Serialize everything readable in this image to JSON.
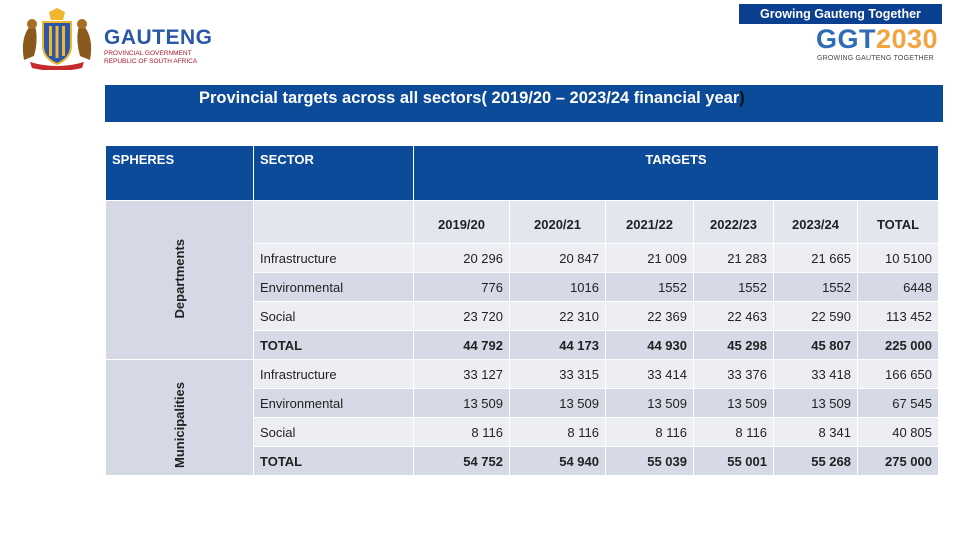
{
  "header": {
    "org_name": "GAUTENG",
    "org_sub_line1": "PROVINCIAL GOVERNMENT",
    "org_sub_line2": "REPUBLIC OF SOUTH AFRICA",
    "tagline": "Growing Gauteng Together",
    "ggt_logo_a": "GGT",
    "ggt_logo_b": "2030",
    "ggt_logo_sub": "GROWING GAUTENG TOGETHER"
  },
  "slide": {
    "title": "Provincial targets across all sectors( 2019/20 – 2023/24 financial year",
    "title_close": ")"
  },
  "table": {
    "col_spheres": "SPHERES",
    "col_sector": "SECTOR",
    "col_targets": "TARGETS",
    "years": [
      "2019/20",
      "2020/21",
      "2021/22",
      "2022/23",
      "2023/24",
      "TOTAL"
    ],
    "groups": [
      {
        "sphere": "Departments",
        "rows": [
          {
            "sector": "Infrastructure",
            "values": [
              "20 296",
              "20 847",
              "21 009",
              "21 283",
              "21 665",
              "10 5100"
            ]
          },
          {
            "sector": "Environmental",
            "values": [
              "776",
              "1016",
              "1552",
              "1552",
              "1552",
              "6448"
            ]
          },
          {
            "sector": "Social",
            "values": [
              "23 720",
              "22 310",
              "22 369",
              "22 463",
              "22 590",
              "113 452"
            ]
          },
          {
            "sector": "TOTAL",
            "values": [
              "44 792",
              "44 173",
              "44 930",
              "45 298",
              "45 807",
              "225 000"
            ]
          }
        ]
      },
      {
        "sphere": "Municipalities",
        "rows": [
          {
            "sector": "Infrastructure",
            "values": [
              "33 127",
              "33 315",
              "33 414",
              "33 376",
              "33 418",
              "166 650"
            ]
          },
          {
            "sector": "Environmental",
            "values": [
              "13 509",
              "13 509",
              "13 509",
              "13 509",
              "13 509",
              "67 545"
            ]
          },
          {
            "sector": "Social",
            "values": [
              "8 116",
              "8 116",
              "8 116",
              "8 116",
              "8 341",
              "40 805"
            ]
          },
          {
            "sector": "TOTAL",
            "values": [
              "54 752",
              "54 940",
              "55 039",
              "55 001",
              "55 268",
              "275 000"
            ]
          }
        ]
      }
    ]
  }
}
